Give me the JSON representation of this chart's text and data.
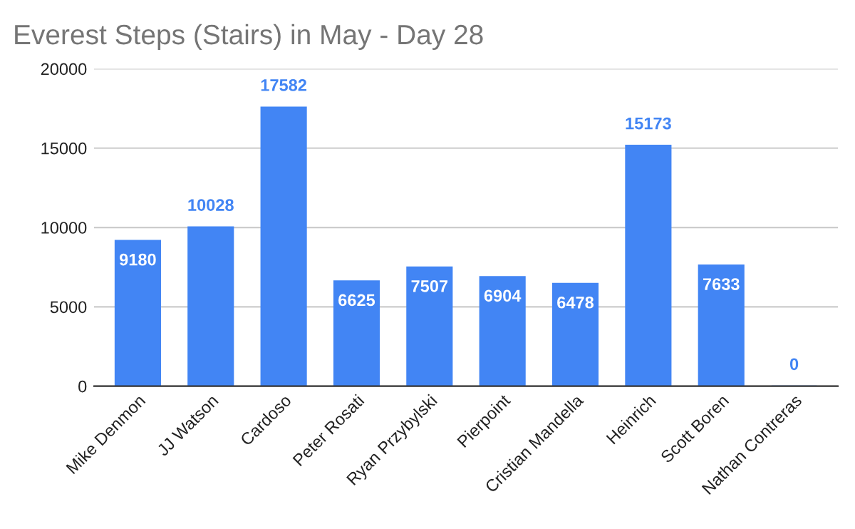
{
  "chart_data": {
    "type": "bar",
    "title": "Everest Steps (Stairs) in May - Day 28",
    "categories": [
      "Mike Denmon",
      "JJ Watson",
      "Cardoso",
      "Peter Rosati",
      "Ryan Przybylski",
      "Pierpoint",
      "Cristian Mandella",
      "Heinrich",
      "Scott Boren",
      "Nathan Contreras"
    ],
    "values": [
      9180,
      10028,
      17582,
      6625,
      7507,
      6904,
      6478,
      15173,
      7633,
      0
    ],
    "color": "#4285f4",
    "ylim": [
      0,
      20000
    ],
    "yticks": [
      0,
      5000,
      10000,
      15000,
      20000
    ],
    "grid": "y",
    "data_labels": true
  }
}
